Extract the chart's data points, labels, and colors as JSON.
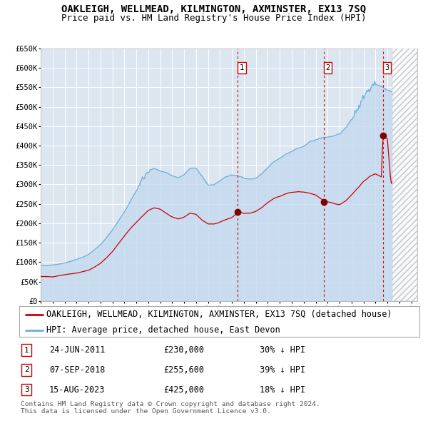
{
  "title": "OAKLEIGH, WELLMEAD, KILMINGTON, AXMINSTER, EX13 7SQ",
  "subtitle": "Price paid vs. HM Land Registry's House Price Index (HPI)",
  "ylim": [
    0,
    650000
  ],
  "yticks": [
    0,
    50000,
    100000,
    150000,
    200000,
    250000,
    300000,
    350000,
    400000,
    450000,
    500000,
    550000,
    600000,
    650000
  ],
  "ytick_labels": [
    "£0",
    "£50K",
    "£100K",
    "£150K",
    "£200K",
    "£250K",
    "£300K",
    "£350K",
    "£400K",
    "£450K",
    "£500K",
    "£550K",
    "£600K",
    "£650K"
  ],
  "xlim_start": 1995.0,
  "xlim_end": 2026.5,
  "hpi_color": "#6baed6",
  "hpi_fill_color": "#c6dbef",
  "price_color": "#cc0000",
  "sale_marker_color": "#800000",
  "vline_color_sale": "#cc0000",
  "background_color": "#dce6f1",
  "grid_color": "#ffffff",
  "legend_label_price": "OAKLEIGH, WELLMEAD, KILMINGTON, AXMINSTER, EX13 7SQ (detached house)",
  "legend_label_hpi": "HPI: Average price, detached house, East Devon",
  "sale_dates": [
    2011.48,
    2018.69,
    2023.62
  ],
  "sale_prices": [
    230000,
    255600,
    425000
  ],
  "sale_labels": [
    "1",
    "2",
    "3"
  ],
  "sale_annotations": [
    {
      "label": "1",
      "date": "24-JUN-2011",
      "price": "£230,000",
      "pct": "30% ↓ HPI"
    },
    {
      "label": "2",
      "date": "07-SEP-2018",
      "price": "£255,600",
      "pct": "39% ↓ HPI"
    },
    {
      "label": "3",
      "date": "15-AUG-2023",
      "price": "£425,000",
      "pct": "18% ↓ HPI"
    }
  ],
  "footnote": "Contains HM Land Registry data © Crown copyright and database right 2024.\nThis data is licensed under the Open Government Licence v3.0.",
  "title_fontsize": 10,
  "subtitle_fontsize": 9,
  "tick_fontsize": 7.5,
  "legend_fontsize": 8.5
}
